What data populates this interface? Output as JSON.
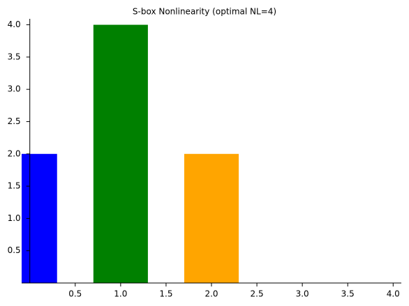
{
  "chart_data": {
    "type": "bar",
    "title": "S-box Nonlinearity (optimal NL=4)",
    "x": [
      0,
      1,
      2
    ],
    "values": [
      2,
      4,
      2
    ],
    "colors": [
      "#0000ff",
      "#008000",
      "#ffa500"
    ],
    "bar_width": 0.6,
    "xlim": [
      -0.09,
      4.09
    ],
    "ylim": [
      0,
      4.06
    ],
    "xticks": [
      {
        "value": 0.5,
        "label": "0.5"
      },
      {
        "value": 1,
        "label": "1.0"
      },
      {
        "value": 1.5,
        "label": "1.5"
      },
      {
        "value": 2,
        "label": "2.0"
      },
      {
        "value": 2.5,
        "label": "2.5"
      },
      {
        "value": 3,
        "label": "3.0"
      },
      {
        "value": 3.5,
        "label": "3.5"
      },
      {
        "value": 4,
        "label": "4.0"
      }
    ],
    "yticks": [
      {
        "value": 0.5,
        "label": "0.5"
      },
      {
        "value": 1,
        "label": "1.0"
      },
      {
        "value": 1.5,
        "label": "1.5"
      },
      {
        "value": 2,
        "label": "2.0"
      },
      {
        "value": 2.5,
        "label": "2.5"
      },
      {
        "value": 3,
        "label": "3.0"
      },
      {
        "value": 3.5,
        "label": "3.5"
      },
      {
        "value": 4,
        "label": "4.0"
      }
    ]
  }
}
